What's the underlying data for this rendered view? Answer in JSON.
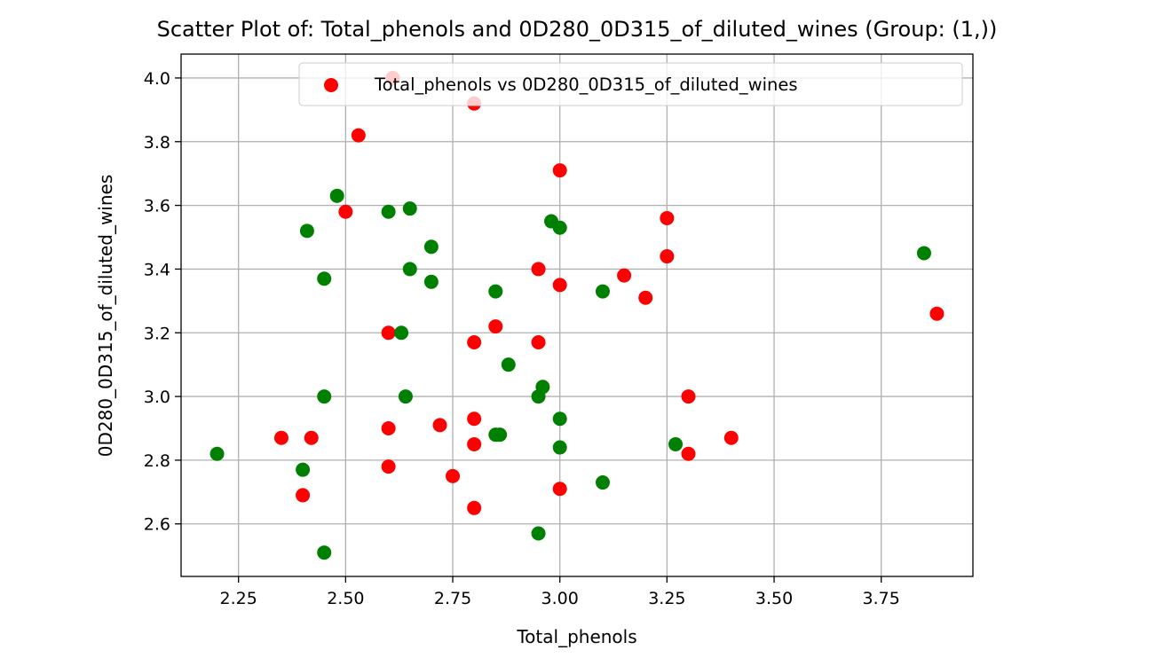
{
  "chart_data": {
    "type": "scatter",
    "title": "Scatter Plot of: Total_phenols and 0D280_0D315_of_diluted_wines (Group: (1,))",
    "xlabel": "Total_phenols",
    "ylabel": "0D280_0D315_of_diluted_wines",
    "xlim": [
      2.116,
      3.964
    ],
    "ylim": [
      2.435,
      4.075
    ],
    "xticks": [
      2.25,
      2.5,
      2.75,
      3.0,
      3.25,
      3.5,
      3.75
    ],
    "xtick_labels": [
      "2.25",
      "2.50",
      "2.75",
      "3.00",
      "3.25",
      "3.50",
      "3.75"
    ],
    "yticks": [
      2.6,
      2.8,
      3.0,
      3.2,
      3.4,
      3.6,
      3.8,
      4.0
    ],
    "ytick_labels": [
      "2.6",
      "2.8",
      "3.0",
      "3.2",
      "3.4",
      "3.6",
      "3.8",
      "4.0"
    ],
    "grid": true,
    "legend": {
      "position": "top-right",
      "entries": [
        {
          "label": "Total_phenols vs 0D280_0D315_of_diluted_wines",
          "color": "#ff0000"
        }
      ]
    },
    "series": [
      {
        "color": "#ff0000",
        "points": [
          [
            2.61,
            4.0
          ],
          [
            2.8,
            3.92
          ],
          [
            2.53,
            3.82
          ],
          [
            3.0,
            3.71
          ],
          [
            2.5,
            3.58
          ],
          [
            3.25,
            3.56
          ],
          [
            3.25,
            3.44
          ],
          [
            2.95,
            3.4
          ],
          [
            3.15,
            3.38
          ],
          [
            3.0,
            3.35
          ],
          [
            3.2,
            3.31
          ],
          [
            3.88,
            3.26
          ],
          [
            2.85,
            3.22
          ],
          [
            2.6,
            3.2
          ],
          [
            2.8,
            3.17
          ],
          [
            2.95,
            3.17
          ],
          [
            3.3,
            3.0
          ],
          [
            2.8,
            2.93
          ],
          [
            2.72,
            2.91
          ],
          [
            2.6,
            2.9
          ],
          [
            2.35,
            2.87
          ],
          [
            2.42,
            2.87
          ],
          [
            3.4,
            2.87
          ],
          [
            2.8,
            2.85
          ],
          [
            3.3,
            2.82
          ],
          [
            2.6,
            2.78
          ],
          [
            2.75,
            2.75
          ],
          [
            3.0,
            2.71
          ],
          [
            2.4,
            2.69
          ],
          [
            2.8,
            2.65
          ]
        ]
      },
      {
        "color": "#008000",
        "points": [
          [
            2.48,
            3.63
          ],
          [
            2.65,
            3.59
          ],
          [
            2.6,
            3.58
          ],
          [
            2.98,
            3.55
          ],
          [
            3.0,
            3.53
          ],
          [
            2.41,
            3.52
          ],
          [
            2.7,
            3.47
          ],
          [
            3.85,
            3.45
          ],
          [
            2.65,
            3.4
          ],
          [
            2.45,
            3.37
          ],
          [
            2.7,
            3.36
          ],
          [
            2.85,
            3.33
          ],
          [
            3.1,
            3.33
          ],
          [
            2.63,
            3.2
          ],
          [
            2.88,
            3.1
          ],
          [
            2.96,
            3.03
          ],
          [
            2.45,
            3.0
          ],
          [
            2.64,
            3.0
          ],
          [
            2.95,
            3.0
          ],
          [
            3.0,
            2.93
          ],
          [
            2.85,
            2.88
          ],
          [
            2.86,
            2.88
          ],
          [
            3.27,
            2.85
          ],
          [
            3.0,
            2.84
          ],
          [
            2.2,
            2.82
          ],
          [
            2.4,
            2.77
          ],
          [
            3.1,
            2.73
          ],
          [
            2.95,
            2.57
          ],
          [
            2.45,
            2.51
          ]
        ]
      }
    ]
  }
}
